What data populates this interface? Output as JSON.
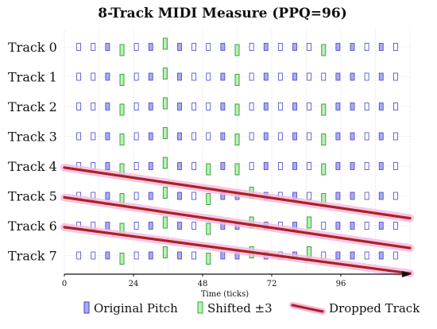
{
  "chart_data": {
    "type": "scatter",
    "title": "8-Track MIDI Measure (PPQ=96)",
    "xlabel": "Time (ticks)",
    "ylabel": "",
    "xlim": [
      0,
      120
    ],
    "x_ticks": [
      0,
      24,
      48,
      72,
      96
    ],
    "tracks": [
      "Track 0",
      "Track 1",
      "Track 2",
      "Track 3",
      "Track 4",
      "Track 5",
      "Track 6",
      "Track 7"
    ],
    "grid": true,
    "legend_position": "bottom",
    "legend": [
      {
        "label": "Original Pitch",
        "kind": "original"
      },
      {
        "label": "Shifted ±3",
        "kind": "shifted"
      },
      {
        "label": "Dropped Track",
        "kind": "dropped"
      }
    ],
    "colors": {
      "original_fill": "#aaaaee",
      "original_stroke": "#4444cc",
      "shifted_fill": "#bbeebb",
      "shifted_stroke": "#33aa33",
      "dropped_line": "#aa2222",
      "dropped_glow": "#f5b8e0",
      "grid": "#d0d0d0"
    },
    "notes_x": [
      5,
      10,
      15,
      20,
      25,
      30,
      35,
      40,
      45,
      50,
      55,
      60,
      65,
      70,
      75,
      80,
      85,
      90,
      95,
      100,
      105,
      110,
      115
    ],
    "notes_pattern": "EEFSEFESEEFSEFESEEFSEFE",
    "shifted_notes": {
      "0": [
        20,
        35,
        60,
        90
      ],
      "1": [
        20,
        35,
        60
      ],
      "2": [
        20,
        35,
        60,
        90
      ],
      "3": [
        20,
        35,
        60,
        90
      ],
      "4": [
        20,
        35,
        50,
        60,
        90
      ],
      "5": [
        20,
        35,
        50,
        65,
        90
      ],
      "6": [
        20,
        35,
        50,
        65,
        85
      ],
      "7": [
        20,
        35,
        50,
        65,
        85
      ]
    },
    "dropped_lines": [
      {
        "x": [
          0,
          120
        ],
        "y": [
          4.05,
          5.75
        ]
      },
      {
        "x": [
          0,
          120
        ],
        "y": [
          5.05,
          6.75
        ]
      },
      {
        "x": [
          0,
          120
        ],
        "y": [
          6.05,
          7.6
        ]
      }
    ]
  }
}
